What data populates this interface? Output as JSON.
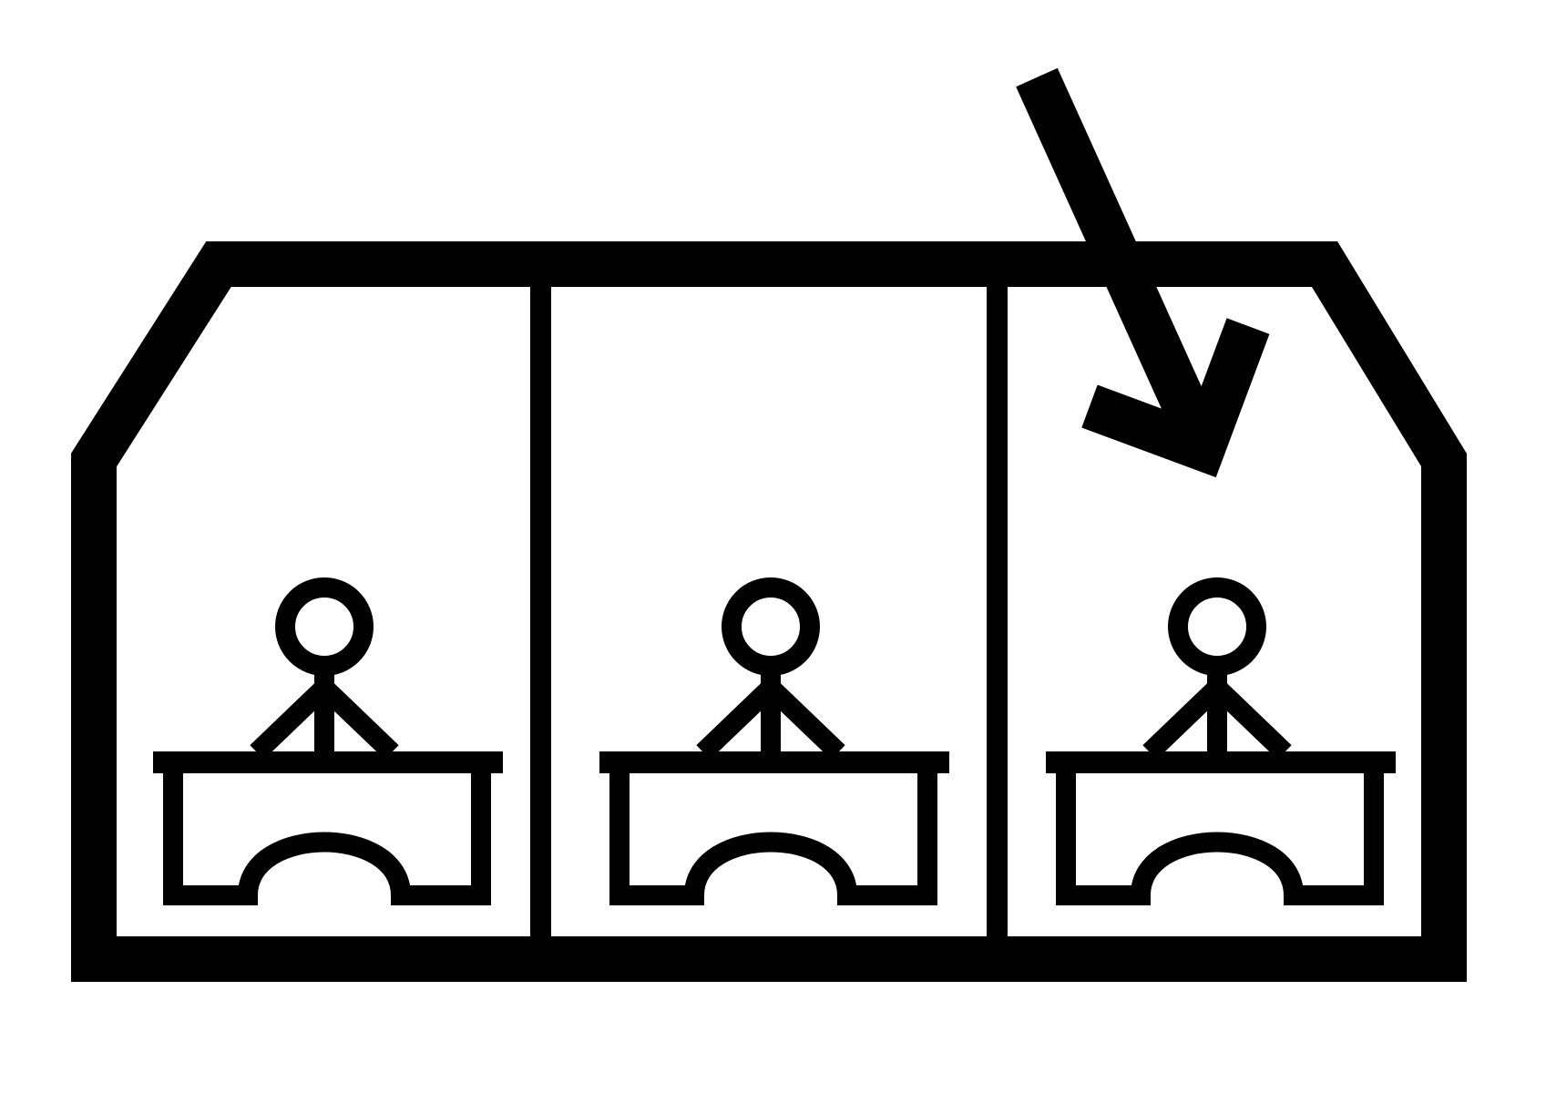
{
  "diagram": {
    "kind": "pictogram",
    "stroke_color": "#000000",
    "background_color": "#ffffff",
    "compartments": [
      {
        "name": "compartment-left",
        "person_icon": "person-at-desk-icon"
      },
      {
        "name": "compartment-middle",
        "person_icon": "person-at-desk-icon"
      },
      {
        "name": "compartment-right",
        "person_icon": "person-at-desk-icon",
        "indicated_by_arrow": true
      }
    ],
    "arrow": {
      "icon": "arrow-down-right-icon",
      "points_to": "compartment-right"
    }
  }
}
